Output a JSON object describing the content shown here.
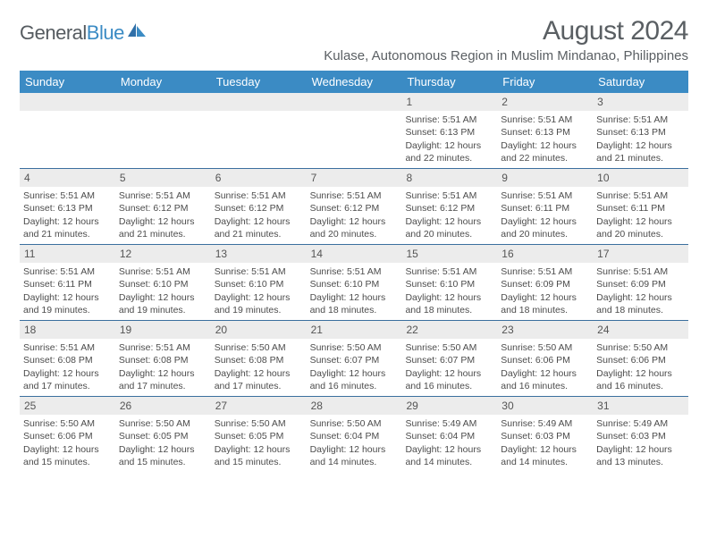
{
  "logo": {
    "text1": "General",
    "text2": "Blue"
  },
  "title": "August 2024",
  "location": "Kulase, Autonomous Region in Muslim Mindanao, Philippines",
  "colors": {
    "header_bg": "#3b8bc4",
    "week_border": "#3b6f9e",
    "daynum_bg": "#ececec",
    "text": "#4c4c4c",
    "title_text": "#5a5f63"
  },
  "day_names": [
    "Sunday",
    "Monday",
    "Tuesday",
    "Wednesday",
    "Thursday",
    "Friday",
    "Saturday"
  ],
  "weeks": [
    [
      {
        "blank": true
      },
      {
        "blank": true
      },
      {
        "blank": true
      },
      {
        "blank": true
      },
      {
        "n": "1",
        "sr": "5:51 AM",
        "ss": "6:13 PM",
        "dl1": "Daylight: 12 hours",
        "dl2": "and 22 minutes."
      },
      {
        "n": "2",
        "sr": "5:51 AM",
        "ss": "6:13 PM",
        "dl1": "Daylight: 12 hours",
        "dl2": "and 22 minutes."
      },
      {
        "n": "3",
        "sr": "5:51 AM",
        "ss": "6:13 PM",
        "dl1": "Daylight: 12 hours",
        "dl2": "and 21 minutes."
      }
    ],
    [
      {
        "n": "4",
        "sr": "5:51 AM",
        "ss": "6:13 PM",
        "dl1": "Daylight: 12 hours",
        "dl2": "and 21 minutes."
      },
      {
        "n": "5",
        "sr": "5:51 AM",
        "ss": "6:12 PM",
        "dl1": "Daylight: 12 hours",
        "dl2": "and 21 minutes."
      },
      {
        "n": "6",
        "sr": "5:51 AM",
        "ss": "6:12 PM",
        "dl1": "Daylight: 12 hours",
        "dl2": "and 21 minutes."
      },
      {
        "n": "7",
        "sr": "5:51 AM",
        "ss": "6:12 PM",
        "dl1": "Daylight: 12 hours",
        "dl2": "and 20 minutes."
      },
      {
        "n": "8",
        "sr": "5:51 AM",
        "ss": "6:12 PM",
        "dl1": "Daylight: 12 hours",
        "dl2": "and 20 minutes."
      },
      {
        "n": "9",
        "sr": "5:51 AM",
        "ss": "6:11 PM",
        "dl1": "Daylight: 12 hours",
        "dl2": "and 20 minutes."
      },
      {
        "n": "10",
        "sr": "5:51 AM",
        "ss": "6:11 PM",
        "dl1": "Daylight: 12 hours",
        "dl2": "and 20 minutes."
      }
    ],
    [
      {
        "n": "11",
        "sr": "5:51 AM",
        "ss": "6:11 PM",
        "dl1": "Daylight: 12 hours",
        "dl2": "and 19 minutes."
      },
      {
        "n": "12",
        "sr": "5:51 AM",
        "ss": "6:10 PM",
        "dl1": "Daylight: 12 hours",
        "dl2": "and 19 minutes."
      },
      {
        "n": "13",
        "sr": "5:51 AM",
        "ss": "6:10 PM",
        "dl1": "Daylight: 12 hours",
        "dl2": "and 19 minutes."
      },
      {
        "n": "14",
        "sr": "5:51 AM",
        "ss": "6:10 PM",
        "dl1": "Daylight: 12 hours",
        "dl2": "and 18 minutes."
      },
      {
        "n": "15",
        "sr": "5:51 AM",
        "ss": "6:10 PM",
        "dl1": "Daylight: 12 hours",
        "dl2": "and 18 minutes."
      },
      {
        "n": "16",
        "sr": "5:51 AM",
        "ss": "6:09 PM",
        "dl1": "Daylight: 12 hours",
        "dl2": "and 18 minutes."
      },
      {
        "n": "17",
        "sr": "5:51 AM",
        "ss": "6:09 PM",
        "dl1": "Daylight: 12 hours",
        "dl2": "and 18 minutes."
      }
    ],
    [
      {
        "n": "18",
        "sr": "5:51 AM",
        "ss": "6:08 PM",
        "dl1": "Daylight: 12 hours",
        "dl2": "and 17 minutes."
      },
      {
        "n": "19",
        "sr": "5:51 AM",
        "ss": "6:08 PM",
        "dl1": "Daylight: 12 hours",
        "dl2": "and 17 minutes."
      },
      {
        "n": "20",
        "sr": "5:50 AM",
        "ss": "6:08 PM",
        "dl1": "Daylight: 12 hours",
        "dl2": "and 17 minutes."
      },
      {
        "n": "21",
        "sr": "5:50 AM",
        "ss": "6:07 PM",
        "dl1": "Daylight: 12 hours",
        "dl2": "and 16 minutes."
      },
      {
        "n": "22",
        "sr": "5:50 AM",
        "ss": "6:07 PM",
        "dl1": "Daylight: 12 hours",
        "dl2": "and 16 minutes."
      },
      {
        "n": "23",
        "sr": "5:50 AM",
        "ss": "6:06 PM",
        "dl1": "Daylight: 12 hours",
        "dl2": "and 16 minutes."
      },
      {
        "n": "24",
        "sr": "5:50 AM",
        "ss": "6:06 PM",
        "dl1": "Daylight: 12 hours",
        "dl2": "and 16 minutes."
      }
    ],
    [
      {
        "n": "25",
        "sr": "5:50 AM",
        "ss": "6:06 PM",
        "dl1": "Daylight: 12 hours",
        "dl2": "and 15 minutes."
      },
      {
        "n": "26",
        "sr": "5:50 AM",
        "ss": "6:05 PM",
        "dl1": "Daylight: 12 hours",
        "dl2": "and 15 minutes."
      },
      {
        "n": "27",
        "sr": "5:50 AM",
        "ss": "6:05 PM",
        "dl1": "Daylight: 12 hours",
        "dl2": "and 15 minutes."
      },
      {
        "n": "28",
        "sr": "5:50 AM",
        "ss": "6:04 PM",
        "dl1": "Daylight: 12 hours",
        "dl2": "and 14 minutes."
      },
      {
        "n": "29",
        "sr": "5:49 AM",
        "ss": "6:04 PM",
        "dl1": "Daylight: 12 hours",
        "dl2": "and 14 minutes."
      },
      {
        "n": "30",
        "sr": "5:49 AM",
        "ss": "6:03 PM",
        "dl1": "Daylight: 12 hours",
        "dl2": "and 14 minutes."
      },
      {
        "n": "31",
        "sr": "5:49 AM",
        "ss": "6:03 PM",
        "dl1": "Daylight: 12 hours",
        "dl2": "and 13 minutes."
      }
    ]
  ],
  "labels": {
    "sunrise": "Sunrise: ",
    "sunset": "Sunset: "
  }
}
